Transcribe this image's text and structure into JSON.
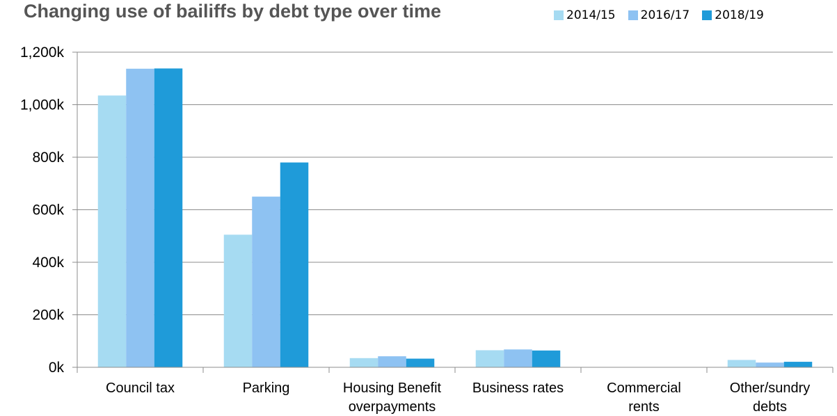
{
  "chart_data": {
    "type": "bar",
    "title": "Changing use of bailiffs by debt type over time",
    "categories": [
      [
        "Council tax"
      ],
      [
        "Parking"
      ],
      [
        "Housing Benefit",
        "overpayments"
      ],
      [
        "Business rates"
      ],
      [
        "Commercial",
        "rents"
      ],
      [
        "Other/sundry",
        "debts"
      ]
    ],
    "series": [
      {
        "name": "2014/15",
        "color": "#a6dbf2",
        "values": [
          1035000,
          505000,
          35000,
          65000,
          0,
          28000
        ]
      },
      {
        "name": "2016/17",
        "color": "#8ec2f2",
        "values": [
          1137000,
          650000,
          42000,
          68000,
          0,
          18000
        ]
      },
      {
        "name": "2018/19",
        "color": "#1f9bd9",
        "values": [
          1138000,
          780000,
          33000,
          64000,
          0,
          21000
        ]
      }
    ],
    "ylim": [
      0,
      1200000
    ],
    "yticks": [
      0,
      200000,
      400000,
      600000,
      800000,
      1000000,
      1200000
    ],
    "ytick_labels": [
      "0k",
      "200k",
      "400k",
      "600k",
      "800k",
      "1,000k",
      "1,200k"
    ],
    "grid": true,
    "legend_position": "top-right",
    "xlabel": "",
    "ylabel": ""
  }
}
